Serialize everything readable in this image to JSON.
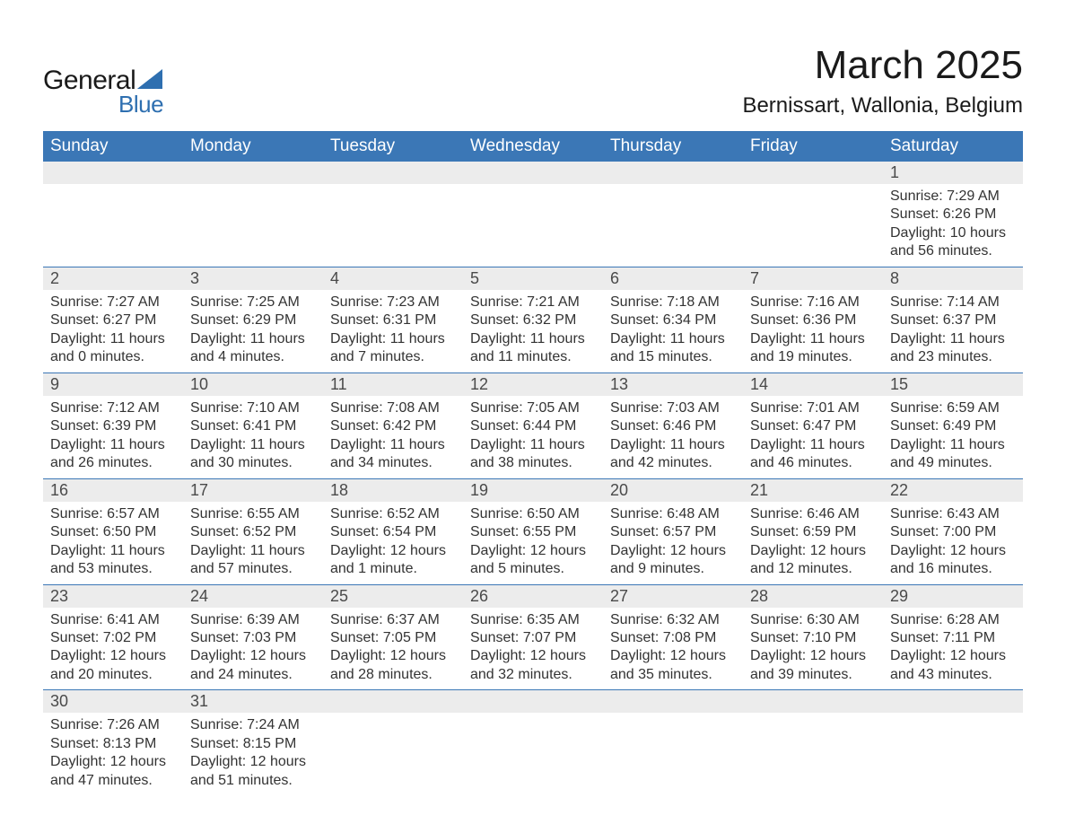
{
  "branding": {
    "logo_text_1": "General",
    "logo_text_2": "Blue",
    "logo_color_dark": "#1a1a1a",
    "logo_color_blue": "#2e6fb0",
    "triangle_color": "#2e6fb0"
  },
  "header": {
    "title": "March 2025",
    "location": "Bernissart, Wallonia, Belgium"
  },
  "style": {
    "header_bg": "#3b77b6",
    "header_fg": "#ffffff",
    "daynum_bg": "#ececec",
    "daynum_fg": "#4a4a4a",
    "body_fg": "#333333",
    "row_border": "#3b77b6",
    "page_bg": "#ffffff",
    "header_fontsize": 19,
    "daynum_fontsize": 18,
    "data_fontsize": 16,
    "title_fontsize": 44,
    "location_fontsize": 24
  },
  "days_of_week": [
    "Sunday",
    "Monday",
    "Tuesday",
    "Wednesday",
    "Thursday",
    "Friday",
    "Saturday"
  ],
  "weeks": [
    [
      null,
      null,
      null,
      null,
      null,
      null,
      {
        "n": "1",
        "sunrise": "Sunrise: 7:29 AM",
        "sunset": "Sunset: 6:26 PM",
        "daylight": "Daylight: 10 hours and 56 minutes."
      }
    ],
    [
      {
        "n": "2",
        "sunrise": "Sunrise: 7:27 AM",
        "sunset": "Sunset: 6:27 PM",
        "daylight": "Daylight: 11 hours and 0 minutes."
      },
      {
        "n": "3",
        "sunrise": "Sunrise: 7:25 AM",
        "sunset": "Sunset: 6:29 PM",
        "daylight": "Daylight: 11 hours and 4 minutes."
      },
      {
        "n": "4",
        "sunrise": "Sunrise: 7:23 AM",
        "sunset": "Sunset: 6:31 PM",
        "daylight": "Daylight: 11 hours and 7 minutes."
      },
      {
        "n": "5",
        "sunrise": "Sunrise: 7:21 AM",
        "sunset": "Sunset: 6:32 PM",
        "daylight": "Daylight: 11 hours and 11 minutes."
      },
      {
        "n": "6",
        "sunrise": "Sunrise: 7:18 AM",
        "sunset": "Sunset: 6:34 PM",
        "daylight": "Daylight: 11 hours and 15 minutes."
      },
      {
        "n": "7",
        "sunrise": "Sunrise: 7:16 AM",
        "sunset": "Sunset: 6:36 PM",
        "daylight": "Daylight: 11 hours and 19 minutes."
      },
      {
        "n": "8",
        "sunrise": "Sunrise: 7:14 AM",
        "sunset": "Sunset: 6:37 PM",
        "daylight": "Daylight: 11 hours and 23 minutes."
      }
    ],
    [
      {
        "n": "9",
        "sunrise": "Sunrise: 7:12 AM",
        "sunset": "Sunset: 6:39 PM",
        "daylight": "Daylight: 11 hours and 26 minutes."
      },
      {
        "n": "10",
        "sunrise": "Sunrise: 7:10 AM",
        "sunset": "Sunset: 6:41 PM",
        "daylight": "Daylight: 11 hours and 30 minutes."
      },
      {
        "n": "11",
        "sunrise": "Sunrise: 7:08 AM",
        "sunset": "Sunset: 6:42 PM",
        "daylight": "Daylight: 11 hours and 34 minutes."
      },
      {
        "n": "12",
        "sunrise": "Sunrise: 7:05 AM",
        "sunset": "Sunset: 6:44 PM",
        "daylight": "Daylight: 11 hours and 38 minutes."
      },
      {
        "n": "13",
        "sunrise": "Sunrise: 7:03 AM",
        "sunset": "Sunset: 6:46 PM",
        "daylight": "Daylight: 11 hours and 42 minutes."
      },
      {
        "n": "14",
        "sunrise": "Sunrise: 7:01 AM",
        "sunset": "Sunset: 6:47 PM",
        "daylight": "Daylight: 11 hours and 46 minutes."
      },
      {
        "n": "15",
        "sunrise": "Sunrise: 6:59 AM",
        "sunset": "Sunset: 6:49 PM",
        "daylight": "Daylight: 11 hours and 49 minutes."
      }
    ],
    [
      {
        "n": "16",
        "sunrise": "Sunrise: 6:57 AM",
        "sunset": "Sunset: 6:50 PM",
        "daylight": "Daylight: 11 hours and 53 minutes."
      },
      {
        "n": "17",
        "sunrise": "Sunrise: 6:55 AM",
        "sunset": "Sunset: 6:52 PM",
        "daylight": "Daylight: 11 hours and 57 minutes."
      },
      {
        "n": "18",
        "sunrise": "Sunrise: 6:52 AM",
        "sunset": "Sunset: 6:54 PM",
        "daylight": "Daylight: 12 hours and 1 minute."
      },
      {
        "n": "19",
        "sunrise": "Sunrise: 6:50 AM",
        "sunset": "Sunset: 6:55 PM",
        "daylight": "Daylight: 12 hours and 5 minutes."
      },
      {
        "n": "20",
        "sunrise": "Sunrise: 6:48 AM",
        "sunset": "Sunset: 6:57 PM",
        "daylight": "Daylight: 12 hours and 9 minutes."
      },
      {
        "n": "21",
        "sunrise": "Sunrise: 6:46 AM",
        "sunset": "Sunset: 6:59 PM",
        "daylight": "Daylight: 12 hours and 12 minutes."
      },
      {
        "n": "22",
        "sunrise": "Sunrise: 6:43 AM",
        "sunset": "Sunset: 7:00 PM",
        "daylight": "Daylight: 12 hours and 16 minutes."
      }
    ],
    [
      {
        "n": "23",
        "sunrise": "Sunrise: 6:41 AM",
        "sunset": "Sunset: 7:02 PM",
        "daylight": "Daylight: 12 hours and 20 minutes."
      },
      {
        "n": "24",
        "sunrise": "Sunrise: 6:39 AM",
        "sunset": "Sunset: 7:03 PM",
        "daylight": "Daylight: 12 hours and 24 minutes."
      },
      {
        "n": "25",
        "sunrise": "Sunrise: 6:37 AM",
        "sunset": "Sunset: 7:05 PM",
        "daylight": "Daylight: 12 hours and 28 minutes."
      },
      {
        "n": "26",
        "sunrise": "Sunrise: 6:35 AM",
        "sunset": "Sunset: 7:07 PM",
        "daylight": "Daylight: 12 hours and 32 minutes."
      },
      {
        "n": "27",
        "sunrise": "Sunrise: 6:32 AM",
        "sunset": "Sunset: 7:08 PM",
        "daylight": "Daylight: 12 hours and 35 minutes."
      },
      {
        "n": "28",
        "sunrise": "Sunrise: 6:30 AM",
        "sunset": "Sunset: 7:10 PM",
        "daylight": "Daylight: 12 hours and 39 minutes."
      },
      {
        "n": "29",
        "sunrise": "Sunrise: 6:28 AM",
        "sunset": "Sunset: 7:11 PM",
        "daylight": "Daylight: 12 hours and 43 minutes."
      }
    ],
    [
      {
        "n": "30",
        "sunrise": "Sunrise: 7:26 AM",
        "sunset": "Sunset: 8:13 PM",
        "daylight": "Daylight: 12 hours and 47 minutes."
      },
      {
        "n": "31",
        "sunrise": "Sunrise: 7:24 AM",
        "sunset": "Sunset: 8:15 PM",
        "daylight": "Daylight: 12 hours and 51 minutes."
      },
      null,
      null,
      null,
      null,
      null
    ]
  ]
}
